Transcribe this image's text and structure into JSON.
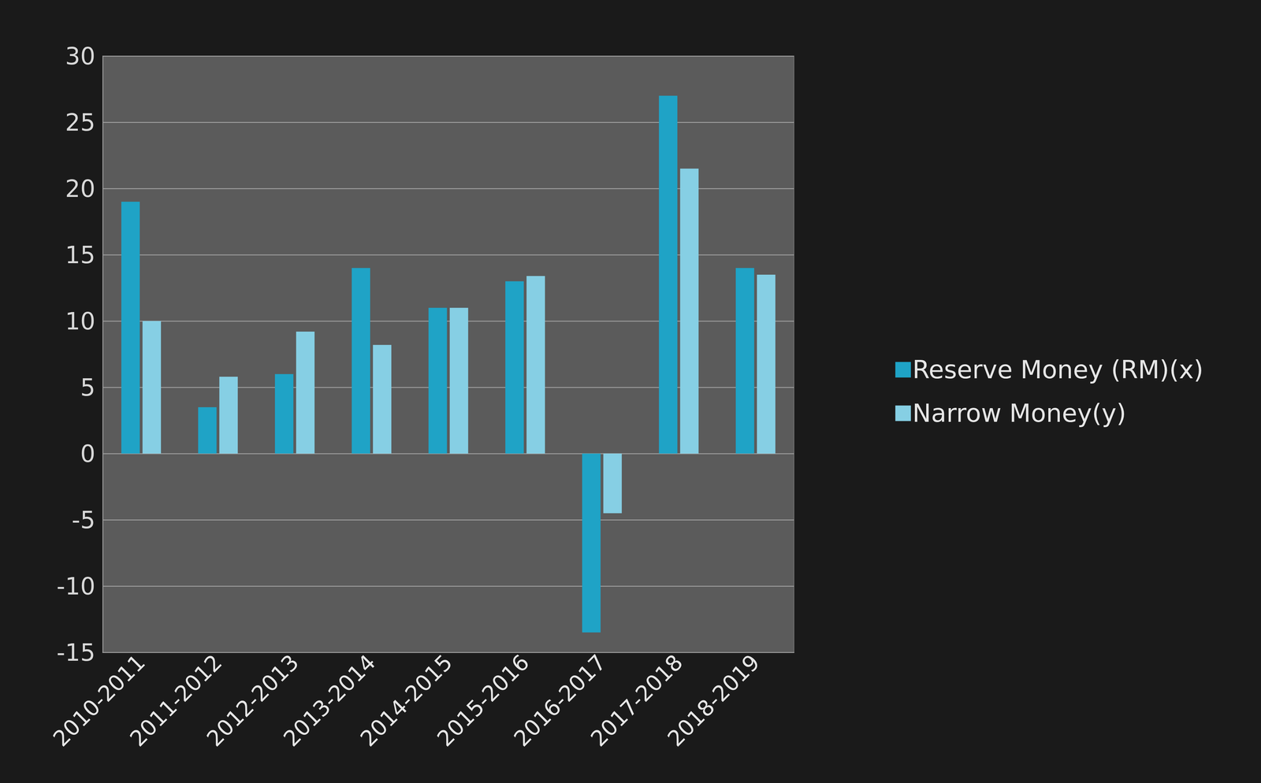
{
  "chart_data": {
    "type": "bar",
    "categories": [
      "2010-2011",
      "2011-2012",
      "2012-2013",
      "2013-2014",
      "2014-2015",
      "2015-2016",
      "2016-2017",
      "2017-2018",
      "2018-2019"
    ],
    "series": [
      {
        "name": "Reserve Money (RM)(x)",
        "color": "#1fa3c6",
        "values": [
          19,
          3.5,
          6,
          14,
          11,
          13,
          -13.5,
          27,
          14
        ]
      },
      {
        "name": "Narrow Money(y)",
        "color": "#86cfe4",
        "values": [
          10,
          5.8,
          9.2,
          8.2,
          11,
          13.4,
          -4.5,
          21.5,
          13.5
        ]
      }
    ],
    "ylim": [
      -15,
      30
    ],
    "yticks": [
      -15,
      -10,
      -5,
      0,
      5,
      10,
      15,
      20,
      25,
      30
    ],
    "grid": true,
    "legend": "right"
  }
}
